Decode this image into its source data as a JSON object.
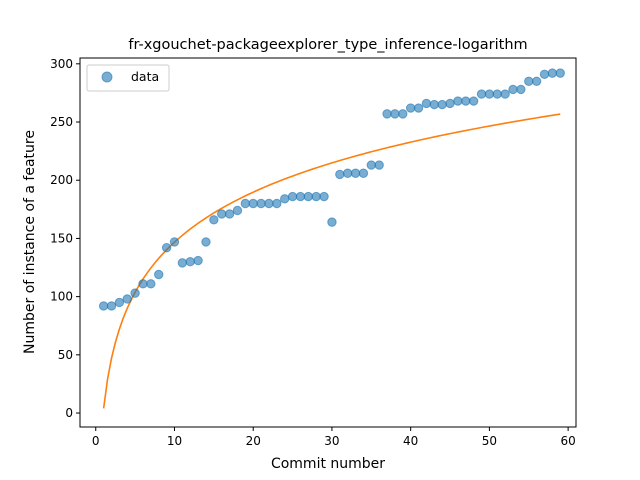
{
  "chart_data": {
    "type": "scatter",
    "title": "fr-xgouchet-packageexplorer_type_inference-logarithm",
    "xlabel": "Commit number",
    "ylabel": "Number of instance of a feature",
    "xlim": [
      -2,
      61
    ],
    "ylim": [
      -12,
      305
    ],
    "xticks": [
      0,
      10,
      20,
      30,
      40,
      50,
      60
    ],
    "yticks": [
      0,
      50,
      100,
      150,
      200,
      250,
      300
    ],
    "legend": {
      "placement": "top-left",
      "entries": [
        "data"
      ]
    },
    "grid": false,
    "colors": {
      "points": "#1f77b4",
      "fit": "#ff7f0e"
    },
    "series": [
      {
        "name": "data",
        "kind": "scatter",
        "x": [
          1,
          2,
          3,
          4,
          5,
          6,
          7,
          8,
          9,
          10,
          11,
          12,
          13,
          14,
          15,
          16,
          17,
          18,
          19,
          20,
          21,
          22,
          23,
          24,
          25,
          26,
          27,
          28,
          29,
          30,
          31,
          32,
          33,
          34,
          35,
          36,
          37,
          38,
          39,
          40,
          41,
          42,
          43,
          44,
          45,
          46,
          47,
          48,
          49,
          50,
          51,
          52,
          53,
          54,
          55,
          56,
          57,
          58,
          59
        ],
        "y": [
          92,
          92,
          95,
          98,
          103,
          111,
          111,
          119,
          142,
          147,
          129,
          130,
          131,
          147,
          166,
          171,
          171,
          174,
          180,
          180,
          180,
          180,
          180,
          184,
          186,
          186,
          186,
          186,
          186,
          164,
          205,
          206,
          206,
          206,
          213,
          213,
          257,
          257,
          257,
          262,
          262,
          266,
          265,
          265,
          266,
          268,
          268,
          268,
          274,
          274,
          274,
          274,
          278,
          278,
          285,
          285,
          291,
          292,
          292
        ]
      },
      {
        "kind": "line",
        "fit": {
          "a": 4.0,
          "b": 62.0
        }
      }
    ]
  }
}
